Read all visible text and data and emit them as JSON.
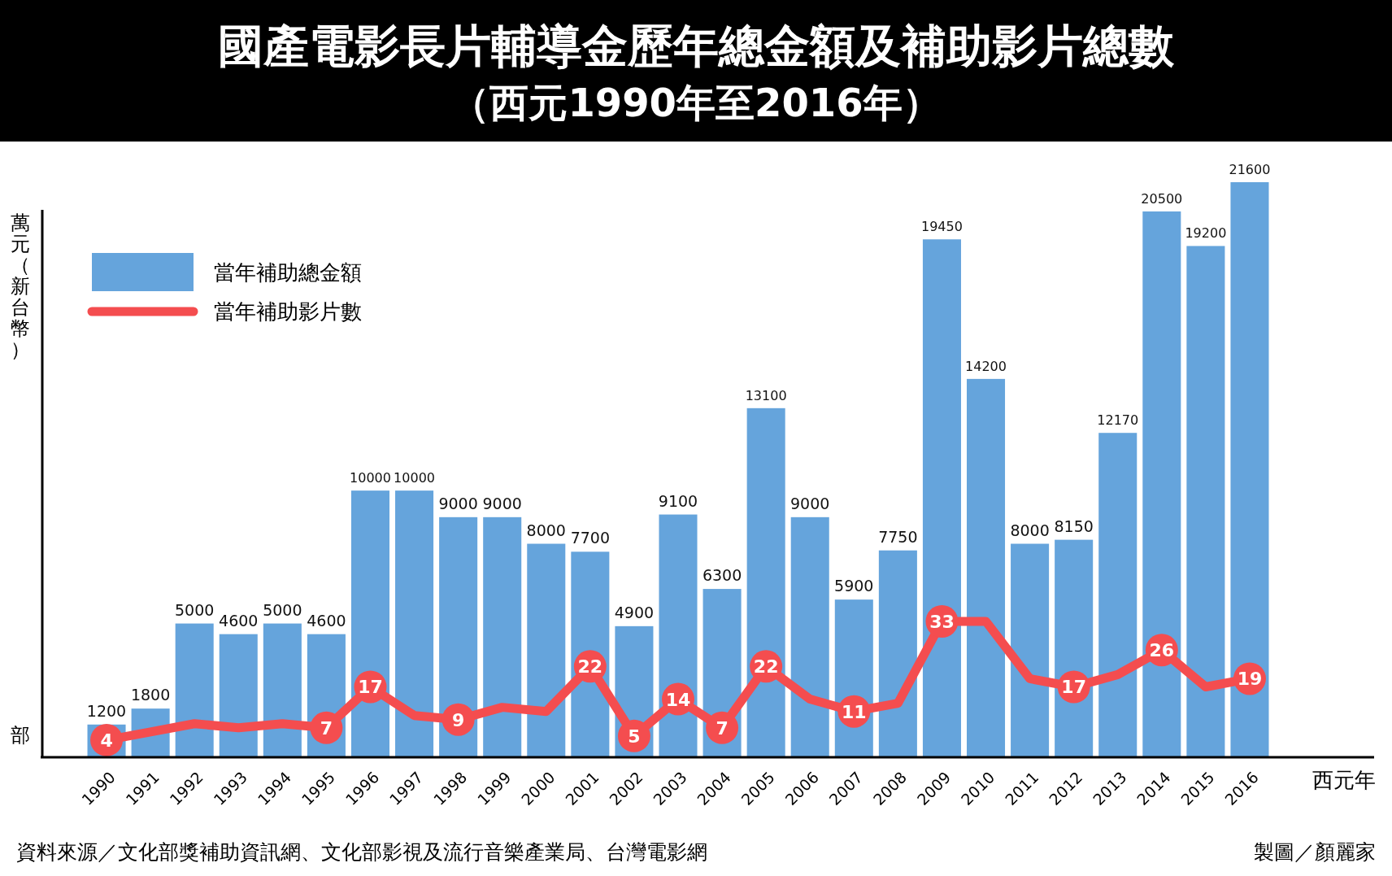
{
  "chart_data": {
    "type": "bar",
    "title": "國產電影長片輔導金歷年總金額及補助影片總數",
    "subtitle": "（西元1990年至2016年）",
    "ylabel": "萬元（新台幣）",
    "y2label": "部",
    "xlabel": "西元年",
    "categories": [
      "1990",
      "1991",
      "1992",
      "1993",
      "1994",
      "1995",
      "1996",
      "1997",
      "1998",
      "1999",
      "2000",
      "2001",
      "2002",
      "2003",
      "2004",
      "2005",
      "2006",
      "2007",
      "2008",
      "2009",
      "2010",
      "2011",
      "2012",
      "2013",
      "2014",
      "2015",
      "2016"
    ],
    "legend": "top left",
    "grid": false,
    "series": [
      {
        "name": "當年補助總金額",
        "color": "#65a4dc",
        "values": [
          1200,
          1800,
          5000,
          4600,
          5000,
          4600,
          10000,
          10000,
          9000,
          9000,
          8000,
          7700,
          4900,
          9100,
          6300,
          13100,
          9000,
          5900,
          7750,
          19450,
          14200,
          8000,
          8150,
          12170,
          20500,
          19200,
          21600
        ],
        "value_labels": [
          "1200",
          "1800",
          "5000",
          "4600",
          "5000",
          "4600",
          "10000",
          "10000",
          "9000",
          "9000",
          "8000",
          "7700",
          "4900",
          "9100",
          "6300",
          "13100",
          "9000",
          "5900",
          "7750",
          "19450",
          "14200",
          "8000",
          "8150",
          "12170",
          "20500",
          "19200",
          "21600"
        ]
      },
      {
        "name": "當年補助影片數",
        "type": "line",
        "axis": "y2",
        "color": "#f44d4f",
        "marker": "circle",
        "values": [
          4,
          6,
          8,
          7,
          8,
          7,
          17,
          10,
          9,
          12,
          11,
          22,
          5,
          14,
          7,
          22,
          14,
          11,
          13,
          33,
          33,
          19,
          17,
          20,
          26,
          17,
          19
        ],
        "value_labels": [
          "4",
          null,
          null,
          null,
          null,
          "7",
          "17",
          null,
          "9",
          null,
          null,
          "22",
          "5",
          "14",
          "7",
          "22",
          null,
          "11",
          null,
          "33",
          null,
          null,
          "17",
          null,
          "26",
          null,
          "19"
        ]
      }
    ],
    "annotations": [
      "資料來源／文化部獎補助資訊網、文化部影視及流行音樂產業局、台灣電影網",
      "製圖／顏麗家"
    ]
  }
}
